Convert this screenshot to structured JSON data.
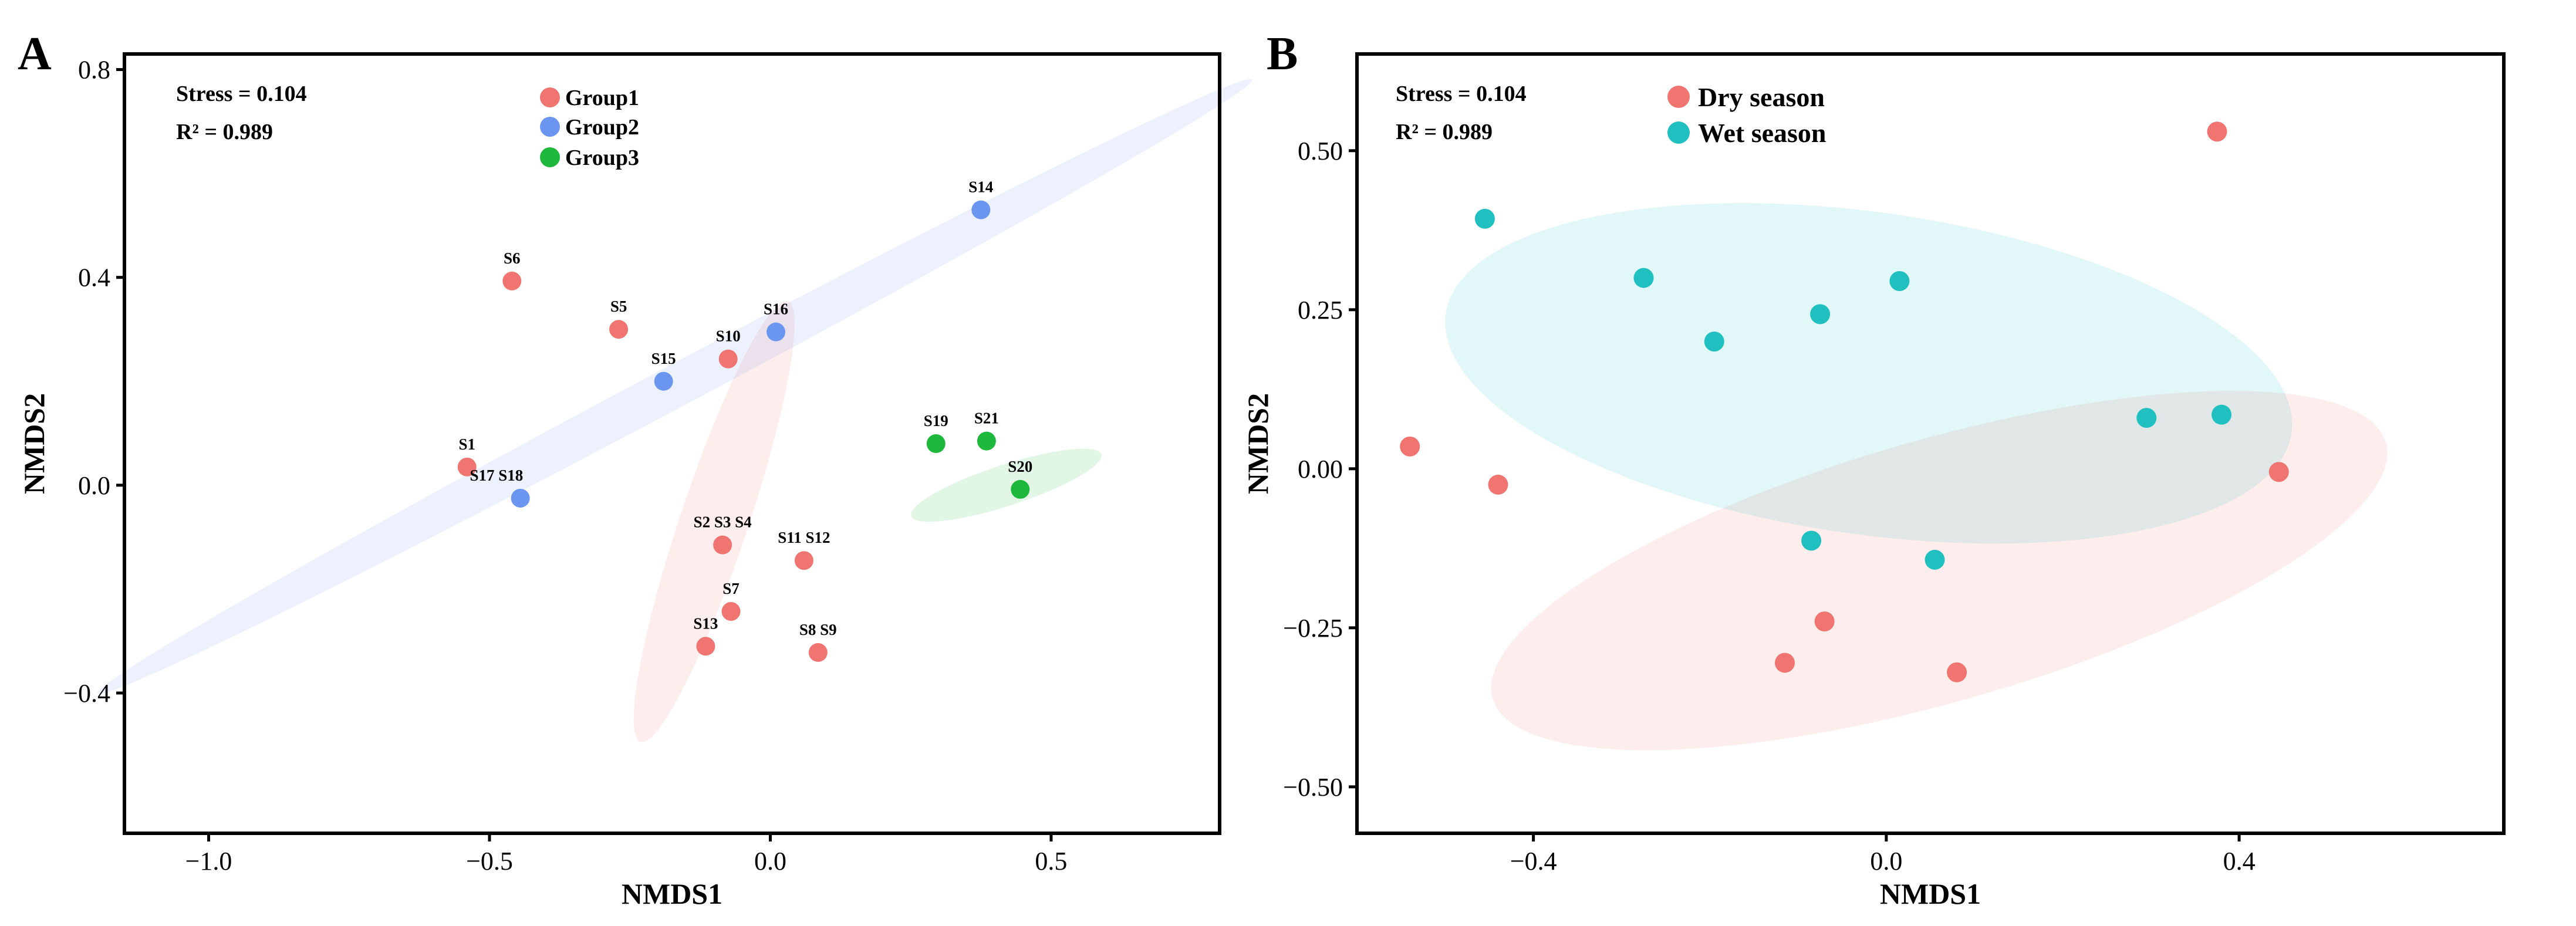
{
  "chart_data": [
    {
      "type": "scatter",
      "panel_label": "A",
      "title": "",
      "xlabel": "NMDS1",
      "ylabel": "NMDS2",
      "xlim": [
        -1.15,
        0.8
      ],
      "ylim": [
        -0.67,
        0.83
      ],
      "xticks": [
        -1.0,
        -0.5,
        0.0,
        0.5
      ],
      "xtick_labels": [
        "−1.0",
        "−0.5",
        "0.0",
        "0.5"
      ],
      "yticks": [
        -0.4,
        0.0,
        0.4,
        0.8
      ],
      "ytick_labels": [
        "−0.4",
        "0.0",
        "0.4",
        "0.8"
      ],
      "grid": false,
      "legend_position": "top-center",
      "stress_text": "Stress = 0.104",
      "r2_text": "R² = 0.989",
      "series": [
        {
          "name": "Group1",
          "color": "#f07470",
          "points": [
            {
              "x": -0.54,
              "y": 0.035
            },
            {
              "x": -0.46,
              "y": 0.393
            },
            {
              "x": -0.27,
              "y": 0.3
            },
            {
              "x": -0.075,
              "y": 0.243
            },
            {
              "x": -0.085,
              "y": -0.115
            },
            {
              "x": -0.07,
              "y": -0.243
            },
            {
              "x": -0.115,
              "y": -0.31
            },
            {
              "x": 0.06,
              "y": -0.145
            },
            {
              "x": 0.085,
              "y": -0.322
            }
          ],
          "ellipse": {
            "center": [
              -0.1,
              -0.07
            ],
            "rx": 0.43,
            "ry": 0.063,
            "angle_deg": 71.5
          }
        },
        {
          "name": "Group2",
          "color": "#6b96f0",
          "points": [
            {
              "x": -0.19,
              "y": 0.2
            },
            {
              "x": 0.01,
              "y": 0.295
            },
            {
              "x": 0.375,
              "y": 0.53
            },
            {
              "x": -0.445,
              "y": -0.025
            }
          ],
          "ellipse": {
            "center": [
              -0.17,
              0.19
            ],
            "rx": 1.21,
            "ry": 0.039,
            "angle_deg": 28
          }
        },
        {
          "name": "Group3",
          "color": "#1db83c",
          "points": [
            {
              "x": 0.295,
              "y": 0.08
            },
            {
              "x": 0.385,
              "y": 0.085
            },
            {
              "x": 0.445,
              "y": -0.008
            }
          ],
          "ellipse": {
            "center": [
              0.42,
              -0.0
            ],
            "rx": 0.185,
            "ry": 0.038,
            "angle_deg": 18
          }
        }
      ],
      "point_labels": [
        {
          "text": "S6",
          "x": -0.46,
          "y": 0.393,
          "anchor": "middle"
        },
        {
          "text": "S5",
          "x": -0.27,
          "y": 0.3,
          "anchor": "middle"
        },
        {
          "text": "S10",
          "x": -0.075,
          "y": 0.243,
          "anchor": "middle"
        },
        {
          "text": "S16",
          "x": 0.01,
          "y": 0.295,
          "anchor": "middle"
        },
        {
          "text": "S14",
          "x": 0.375,
          "y": 0.53,
          "anchor": "middle"
        },
        {
          "text": "S15",
          "x": -0.19,
          "y": 0.2,
          "anchor": "middle"
        },
        {
          "text": "S1",
          "x": -0.54,
          "y": 0.035,
          "anchor": "middle"
        },
        {
          "text": "S17 S18",
          "x": -0.445,
          "y": -0.025,
          "anchor": "start",
          "dx": -0.09
        },
        {
          "text": "S19",
          "x": 0.295,
          "y": 0.08,
          "anchor": "middle"
        },
        {
          "text": "S21",
          "x": 0.385,
          "y": 0.085,
          "anchor": "middle"
        },
        {
          "text": "S20",
          "x": 0.445,
          "y": -0.008,
          "anchor": "middle"
        },
        {
          "text": "S2 S3 S4",
          "x": -0.085,
          "y": -0.115,
          "anchor": "middle"
        },
        {
          "text": "S11 S12",
          "x": 0.06,
          "y": -0.145,
          "anchor": "middle"
        },
        {
          "text": "S7",
          "x": -0.07,
          "y": -0.243,
          "anchor": "middle"
        },
        {
          "text": "S13",
          "x": -0.115,
          "y": -0.31,
          "anchor": "middle"
        },
        {
          "text": "S8 S9",
          "x": 0.085,
          "y": -0.322,
          "anchor": "middle"
        }
      ]
    },
    {
      "type": "scatter",
      "panel_label": "B",
      "title": "",
      "xlabel": "NMDS1",
      "ylabel": "NMDS2",
      "xlim": [
        -0.6,
        0.7
      ],
      "ylim": [
        -0.573,
        0.652
      ],
      "xticks": [
        -0.4,
        0.0,
        0.4
      ],
      "xtick_labels": [
        "−0.4",
        "0.0",
        "0.4"
      ],
      "yticks": [
        -0.5,
        -0.25,
        0.0,
        0.25,
        0.5
      ],
      "ytick_labels": [
        "−0.50",
        "−0.25",
        "0.00",
        "0.25",
        "0.50"
      ],
      "grid": false,
      "legend_position": "top-left",
      "stress_text": "Stress = 0.104",
      "r2_text": "R² = 0.989",
      "series": [
        {
          "name": "Dry season",
          "color": "#f07470",
          "points": [
            {
              "x": -0.54,
              "y": 0.035
            },
            {
              "x": -0.44,
              "y": -0.025
            },
            {
              "x": 0.375,
              "y": 0.53
            },
            {
              "x": 0.445,
              "y": -0.005
            },
            {
              "x": -0.07,
              "y": -0.24
            },
            {
              "x": -0.115,
              "y": -0.305
            },
            {
              "x": 0.08,
              "y": -0.32
            }
          ],
          "ellipse": {
            "center": [
              0.06,
              -0.16
            ],
            "rx": 0.62,
            "ry": 0.175,
            "angle_deg": 16
          }
        },
        {
          "name": "Wet season",
          "color": "#20c0c0",
          "points": [
            {
              "x": -0.455,
              "y": 0.393
            },
            {
              "x": -0.275,
              "y": 0.3
            },
            {
              "x": -0.195,
              "y": 0.2
            },
            {
              "x": -0.075,
              "y": 0.243
            },
            {
              "x": 0.015,
              "y": 0.295
            },
            {
              "x": 0.295,
              "y": 0.08
            },
            {
              "x": 0.38,
              "y": 0.085
            },
            {
              "x": -0.085,
              "y": -0.113
            },
            {
              "x": 0.055,
              "y": -0.143
            }
          ],
          "ellipse": {
            "center": [
              -0.02,
              0.15
            ],
            "rx": 0.57,
            "ry": 0.215,
            "angle_deg": -8
          }
        }
      ]
    }
  ]
}
